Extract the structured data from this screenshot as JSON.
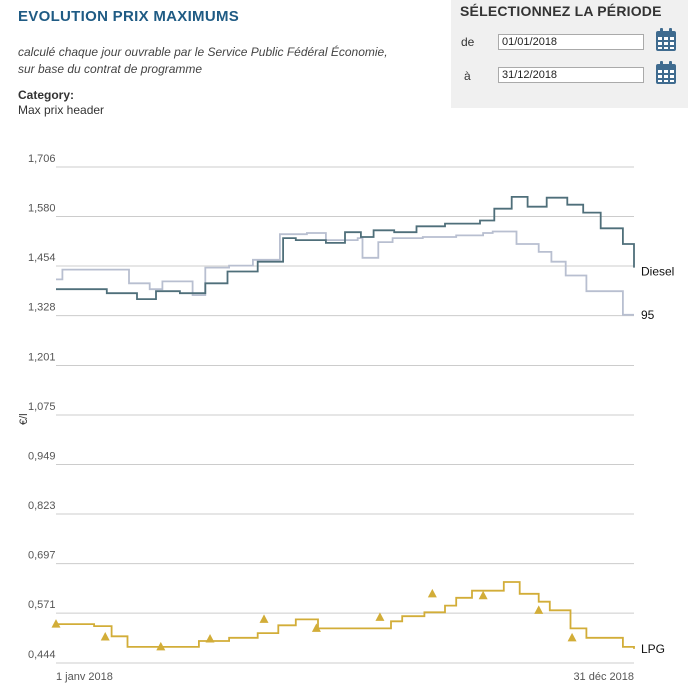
{
  "header": {
    "title": "EVOLUTION PRIX MAXIMUMS",
    "subtitle_line1": "calculé chaque jour ouvrable par le Service Public Fédéral Économie,",
    "subtitle_line2": "sur base du contrat de programme",
    "category_label": "Category:",
    "category_value": "Max prix header"
  },
  "period": {
    "title": "SÉLECTIONNEZ LA PÉRIODE",
    "from_label": "de",
    "from_value": "01/01/2018",
    "to_label": "à",
    "to_value": "31/12/2018",
    "calendar_icon": "calendar-icon"
  },
  "colors": {
    "title": "#1f5b84",
    "diesel": "#4f6f7a",
    "gasoline95": "#b8bfd0",
    "lpg": "#d2ad38",
    "grid": "#cccccc",
    "calendar": "#3f6b8f"
  },
  "chart_data": {
    "type": "line",
    "ylabel": "€/l",
    "xlabel": "",
    "ylim": [
      0.444,
      1.706
    ],
    "yticks": [
      "1,706",
      "1,580",
      "1,454",
      "1,328",
      "1,201",
      "1,075",
      "0,949",
      "0,823",
      "0,697",
      "0,571",
      "0,444"
    ],
    "yticks_values": [
      1.706,
      1.58,
      1.454,
      1.328,
      1.201,
      1.075,
      0.949,
      0.823,
      0.697,
      0.571,
      0.444
    ],
    "xlim": [
      "2018-01-01",
      "2018-12-31"
    ],
    "xtick_labels": [
      "1 janv 2018",
      "31 déc 2018"
    ],
    "grid": "horizontal",
    "legend": "labels at line ends",
    "series": [
      {
        "name": "Diesel",
        "x": [
          "2018-01-01",
          "2018-02-02",
          "2018-02-21",
          "2018-03-05",
          "2018-03-20",
          "2018-04-05",
          "2018-04-19",
          "2018-05-08",
          "2018-05-24",
          "2018-06-01",
          "2018-06-20",
          "2018-07-02",
          "2018-07-12",
          "2018-07-20",
          "2018-08-02",
          "2018-08-16",
          "2018-09-03",
          "2018-09-14",
          "2018-09-25",
          "2018-10-04",
          "2018-10-15",
          "2018-10-25",
          "2018-11-06",
          "2018-11-19",
          "2018-11-29",
          "2018-12-10",
          "2018-12-24",
          "2018-12-31"
        ],
        "values": [
          1.395,
          1.385,
          1.37,
          1.39,
          1.385,
          1.41,
          1.44,
          1.465,
          1.525,
          1.52,
          1.513,
          1.54,
          1.528,
          1.545,
          1.54,
          1.555,
          1.562,
          1.562,
          1.57,
          1.6,
          1.63,
          1.605,
          1.628,
          1.61,
          1.59,
          1.55,
          1.51,
          1.45
        ]
      },
      {
        "name": "95",
        "x": [
          "2018-01-01",
          "2018-01-05",
          "2018-02-16",
          "2018-03-01",
          "2018-03-09",
          "2018-03-28",
          "2018-04-05",
          "2018-04-20",
          "2018-05-05",
          "2018-05-22",
          "2018-06-08",
          "2018-06-20",
          "2018-07-10",
          "2018-07-13",
          "2018-07-23",
          "2018-08-01",
          "2018-08-20",
          "2018-09-10",
          "2018-09-27",
          "2018-10-03",
          "2018-10-18",
          "2018-11-01",
          "2018-11-09",
          "2018-11-18",
          "2018-12-01",
          "2018-12-24",
          "2018-12-31"
        ],
        "values": [
          1.42,
          1.445,
          1.41,
          1.395,
          1.415,
          1.38,
          1.45,
          1.455,
          1.47,
          1.535,
          1.538,
          1.52,
          1.525,
          1.475,
          1.515,
          1.525,
          1.528,
          1.532,
          1.538,
          1.542,
          1.51,
          1.49,
          1.465,
          1.43,
          1.39,
          1.33,
          1.33
        ]
      },
      {
        "name": "LPG",
        "x": [
          "2018-01-01",
          "2018-01-25",
          "2018-02-05",
          "2018-02-15",
          "2018-03-15",
          "2018-04-01",
          "2018-04-20",
          "2018-05-08",
          "2018-05-21",
          "2018-06-01",
          "2018-06-15",
          "2018-07-01",
          "2018-07-31",
          "2018-08-07",
          "2018-08-21",
          "2018-09-03",
          "2018-09-10",
          "2018-09-20",
          "2018-10-10",
          "2018-10-20",
          "2018-11-01",
          "2018-11-08",
          "2018-11-21",
          "2018-12-01",
          "2018-12-24",
          "2018-12-31"
        ],
        "values": [
          0.543,
          0.538,
          0.512,
          0.485,
          0.485,
          0.5,
          0.508,
          0.52,
          0.54,
          0.555,
          0.532,
          0.532,
          0.55,
          0.563,
          0.573,
          0.59,
          0.61,
          0.628,
          0.65,
          0.62,
          0.6,
          0.578,
          0.532,
          0.508,
          0.485,
          0.48
        ],
        "markers_x": [
          "2018-01-01",
          "2018-02-01",
          "2018-03-08",
          "2018-04-08",
          "2018-05-12",
          "2018-06-14",
          "2018-07-24",
          "2018-08-26",
          "2018-09-27",
          "2018-11-01",
          "2018-11-22"
        ],
        "markers_y": [
          0.543,
          0.51,
          0.485,
          0.505,
          0.555,
          0.532,
          0.56,
          0.62,
          0.615,
          0.578,
          0.508
        ]
      }
    ]
  }
}
